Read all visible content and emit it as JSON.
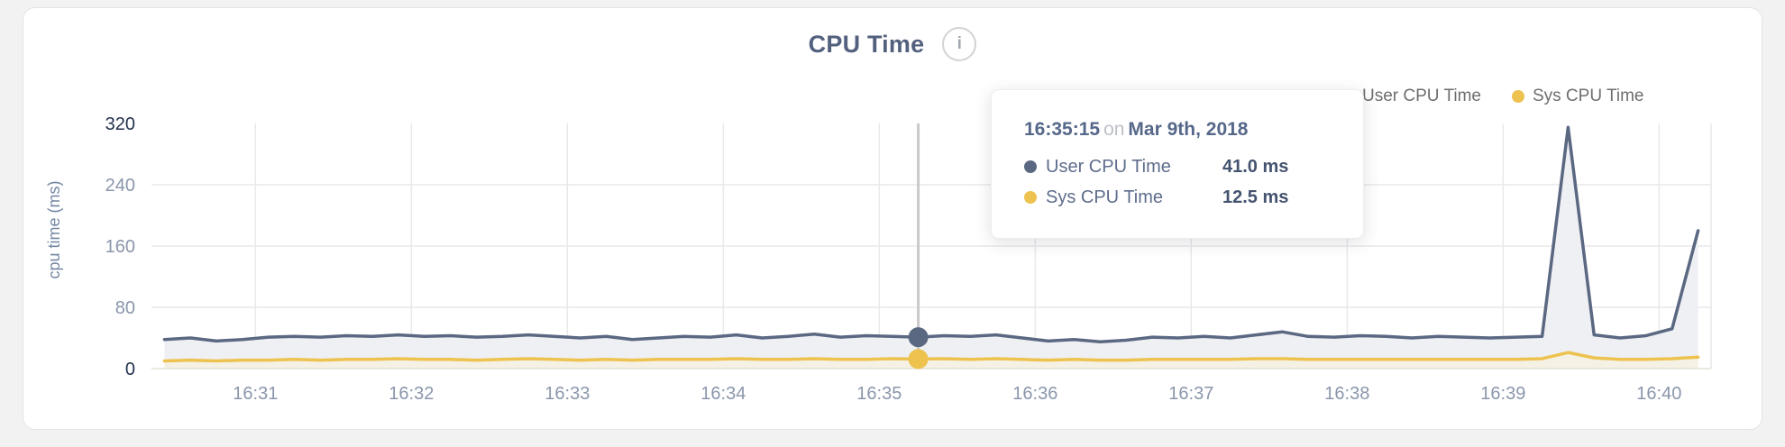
{
  "page": {
    "background_color": "#f2f2f3",
    "card_background": "#ffffff",
    "card_border_color": "#e4e4e6"
  },
  "header": {
    "title": "CPU Time",
    "info_icon_glyph": "i"
  },
  "legend": {
    "items": [
      {
        "label": "User CPU Time",
        "color": "#5b6882"
      },
      {
        "label": "Sys CPU Time",
        "color": "#edc24f"
      }
    ]
  },
  "tooltip": {
    "time": "16:35:15",
    "conjunction": "on",
    "date": "Mar 9th, 2018",
    "rows": [
      {
        "label": "User CPU Time",
        "value": "41.0 ms",
        "color": "#5b6882"
      },
      {
        "label": "Sys CPU Time",
        "value": "12.5 ms",
        "color": "#edc24f"
      }
    ]
  },
  "chart_data": {
    "type": "area",
    "title": "CPU Time",
    "xlabel": "",
    "ylabel": "cpu time (ms)",
    "ylim": [
      0,
      320
    ],
    "yticks": [
      0,
      80,
      160,
      240,
      320
    ],
    "ytick_emphasis": [
      0,
      320
    ],
    "xticks": [
      "16:31",
      "16:32",
      "16:33",
      "16:34",
      "16:35",
      "16:36",
      "16:37",
      "16:38",
      "16:39",
      "16:40"
    ],
    "x_domain": [
      "16:30:20",
      "16:40:20"
    ],
    "x_start": "16:30:25",
    "x_step_seconds": 10,
    "grid": true,
    "legend_position": "top-right",
    "series": [
      {
        "name": "User CPU Time",
        "color": "#5b6882",
        "fill": "#eef0f4",
        "values": [
          38,
          40,
          36,
          38,
          41,
          42,
          41,
          43,
          42,
          44,
          42,
          43,
          41,
          42,
          44,
          42,
          40,
          42,
          38,
          40,
          42,
          41,
          44,
          40,
          42,
          45,
          41,
          43,
          42,
          41,
          43,
          42,
          44,
          40,
          36,
          38,
          35,
          37,
          41,
          40,
          42,
          40,
          44,
          48,
          42,
          41,
          43,
          42,
          40,
          42,
          41,
          40,
          41,
          42,
          315,
          44,
          40,
          43,
          52,
          180
        ]
      },
      {
        "name": "Sys CPU Time",
        "color": "#edc24f",
        "fill": "#f5f1e4",
        "values": [
          10,
          11,
          10,
          11,
          11,
          12,
          11,
          12,
          12,
          13,
          12,
          12,
          11,
          12,
          13,
          12,
          11,
          12,
          11,
          12,
          12,
          12,
          13,
          12,
          12,
          13,
          12,
          12,
          13,
          12.5,
          13,
          12,
          13,
          12,
          11,
          12,
          11,
          11,
          12,
          12,
          12,
          12,
          13,
          13,
          12,
          12,
          12,
          12,
          12,
          12,
          12,
          12,
          12,
          13,
          21,
          14,
          12,
          12,
          13,
          15
        ]
      }
    ],
    "hover": {
      "time": "16:35:15",
      "point_index": 29,
      "values": {
        "User CPU Time": 41.0,
        "Sys CPU Time": 12.5
      },
      "line_color": "#c9c9c9"
    },
    "style": {
      "grid_color": "#e9e9eb",
      "zero_line_color": "#e3e0d7",
      "tick_color": "#8a96ab",
      "tick_emphasis_color": "#22314e",
      "axis_label_color": "#7487a3"
    }
  }
}
